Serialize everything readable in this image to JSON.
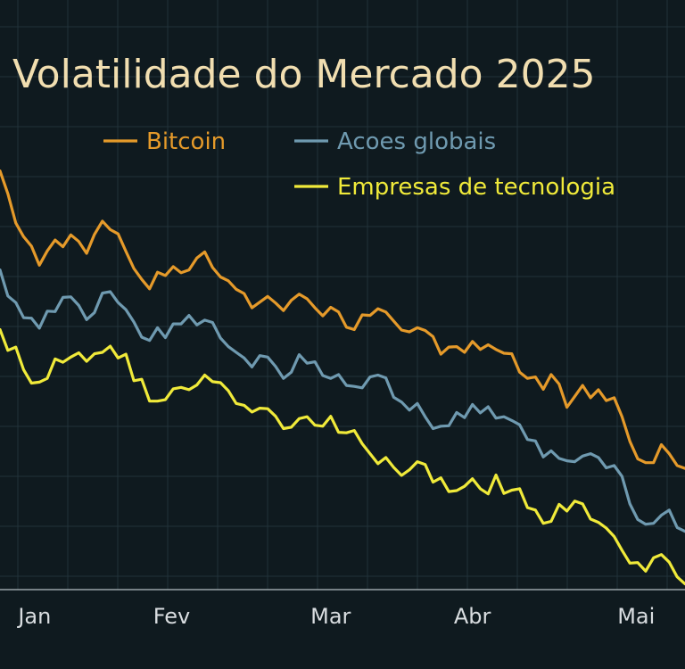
{
  "chart_data": {
    "type": "line",
    "title": "Volatilidade do Mercado 2025",
    "xlabel": "",
    "ylabel": "",
    "x_ticks": [
      "Jan",
      "Fev",
      "Mar",
      "Abr",
      "Mai"
    ],
    "x_tick_positions": [
      0.22,
      1.09,
      2.1,
      3.0,
      4.04
    ],
    "xlim": [
      0,
      4.35
    ],
    "ylim": [
      0,
      100
    ],
    "grid": true,
    "legend_position": "top",
    "colors": {
      "background": "#0f1a1f",
      "title": "#f1deb0"
    },
    "series": [
      {
        "name": "Bitcoin",
        "color": "#e59a2a",
        "values": [
          [
            0.0,
            88.4
          ],
          [
            0.05,
            83.6
          ],
          [
            0.1,
            77.4
          ],
          [
            0.15,
            74.5
          ],
          [
            0.2,
            72.5
          ],
          [
            0.25,
            68.5
          ],
          [
            0.3,
            71.5
          ],
          [
            0.35,
            73.8
          ],
          [
            0.4,
            72.4
          ],
          [
            0.45,
            74.9
          ],
          [
            0.5,
            73.5
          ],
          [
            0.55,
            71.0
          ],
          [
            0.6,
            75.0
          ],
          [
            0.65,
            77.8
          ],
          [
            0.7,
            76.0
          ],
          [
            0.75,
            75.1
          ],
          [
            0.8,
            71.4
          ],
          [
            0.85,
            67.8
          ],
          [
            0.9,
            65.5
          ],
          [
            0.95,
            63.5
          ],
          [
            1.0,
            67.0
          ],
          [
            1.05,
            66.3
          ],
          [
            1.1,
            68.2
          ],
          [
            1.15,
            66.9
          ],
          [
            1.2,
            67.5
          ],
          [
            1.25,
            70.0
          ],
          [
            1.3,
            71.3
          ],
          [
            1.35,
            68.0
          ],
          [
            1.4,
            66.0
          ],
          [
            1.45,
            65.2
          ],
          [
            1.5,
            63.4
          ],
          [
            1.55,
            62.5
          ],
          [
            1.6,
            59.5
          ],
          [
            1.65,
            60.7
          ],
          [
            1.7,
            61.9
          ],
          [
            1.75,
            60.5
          ],
          [
            1.8,
            58.9
          ],
          [
            1.85,
            61.1
          ],
          [
            1.9,
            62.4
          ],
          [
            1.95,
            61.4
          ],
          [
            2.0,
            59.5
          ],
          [
            2.05,
            57.8
          ],
          [
            2.1,
            59.6
          ],
          [
            2.15,
            58.6
          ],
          [
            2.2,
            55.4
          ],
          [
            2.25,
            54.9
          ],
          [
            2.3,
            58.0
          ],
          [
            2.35,
            57.9
          ],
          [
            2.4,
            59.3
          ],
          [
            2.45,
            58.6
          ],
          [
            2.5,
            56.7
          ],
          [
            2.55,
            54.8
          ],
          [
            2.6,
            54.4
          ],
          [
            2.65,
            55.3
          ],
          [
            2.7,
            54.7
          ],
          [
            2.75,
            53.4
          ],
          [
            2.8,
            49.7
          ],
          [
            2.85,
            51.2
          ],
          [
            2.9,
            51.3
          ],
          [
            2.95,
            50.1
          ],
          [
            3.0,
            52.4
          ],
          [
            3.05,
            50.7
          ],
          [
            3.1,
            51.7
          ],
          [
            3.15,
            50.7
          ],
          [
            3.2,
            49.9
          ],
          [
            3.25,
            49.8
          ],
          [
            3.3,
            45.9
          ],
          [
            3.35,
            44.6
          ],
          [
            3.4,
            44.9
          ],
          [
            3.45,
            42.3
          ],
          [
            3.5,
            45.4
          ],
          [
            3.55,
            43.4
          ],
          [
            3.6,
            38.5
          ],
          [
            3.65,
            40.8
          ],
          [
            3.7,
            43.1
          ],
          [
            3.75,
            40.5
          ],
          [
            3.8,
            42.2
          ],
          [
            3.85,
            39.9
          ],
          [
            3.9,
            40.5
          ],
          [
            3.95,
            36.5
          ],
          [
            4.0,
            31.3
          ],
          [
            4.05,
            27.6
          ],
          [
            4.1,
            26.8
          ],
          [
            4.15,
            26.8
          ],
          [
            4.2,
            30.6
          ],
          [
            4.25,
            28.7
          ],
          [
            4.3,
            26.2
          ],
          [
            4.35,
            25.6
          ]
        ]
      },
      {
        "name": "Acoes globais",
        "color": "#6f9ab0",
        "values": [
          [
            0.0,
            67.5
          ],
          [
            0.05,
            62.0
          ],
          [
            0.1,
            60.6
          ],
          [
            0.15,
            57.4
          ],
          [
            0.2,
            57.3
          ],
          [
            0.25,
            55.2
          ],
          [
            0.3,
            58.8
          ],
          [
            0.35,
            58.7
          ],
          [
            0.4,
            61.7
          ],
          [
            0.45,
            61.8
          ],
          [
            0.5,
            60.0
          ],
          [
            0.55,
            57.0
          ],
          [
            0.6,
            58.5
          ],
          [
            0.65,
            62.6
          ],
          [
            0.7,
            62.9
          ],
          [
            0.75,
            60.6
          ],
          [
            0.8,
            59.1
          ],
          [
            0.85,
            56.5
          ],
          [
            0.9,
            53.3
          ],
          [
            0.95,
            52.6
          ],
          [
            1.0,
            55.3
          ],
          [
            1.05,
            53.2
          ],
          [
            1.1,
            56.1
          ],
          [
            1.15,
            56.1
          ],
          [
            1.2,
            57.9
          ],
          [
            1.25,
            55.9
          ],
          [
            1.3,
            56.9
          ],
          [
            1.35,
            56.4
          ],
          [
            1.4,
            53.1
          ],
          [
            1.45,
            51.3
          ],
          [
            1.5,
            50.1
          ],
          [
            1.55,
            48.9
          ],
          [
            1.6,
            47.0
          ],
          [
            1.65,
            49.4
          ],
          [
            1.7,
            49.1
          ],
          [
            1.75,
            47.1
          ],
          [
            1.8,
            44.6
          ],
          [
            1.85,
            45.9
          ],
          [
            1.9,
            49.6
          ],
          [
            1.95,
            47.8
          ],
          [
            2.0,
            48.1
          ],
          [
            2.05,
            45.2
          ],
          [
            2.1,
            44.6
          ],
          [
            2.15,
            45.4
          ],
          [
            2.2,
            43.1
          ],
          [
            2.25,
            42.9
          ],
          [
            2.3,
            42.6
          ],
          [
            2.35,
            44.9
          ],
          [
            2.4,
            45.3
          ],
          [
            2.45,
            44.7
          ],
          [
            2.5,
            40.6
          ],
          [
            2.55,
            39.6
          ],
          [
            2.6,
            37.9
          ],
          [
            2.65,
            39.3
          ],
          [
            2.7,
            36.5
          ],
          [
            2.75,
            34.0
          ],
          [
            2.8,
            34.5
          ],
          [
            2.85,
            34.6
          ],
          [
            2.9,
            37.4
          ],
          [
            2.95,
            36.3
          ],
          [
            3.0,
            39.1
          ],
          [
            3.05,
            37.3
          ],
          [
            3.1,
            38.6
          ],
          [
            3.15,
            36.2
          ],
          [
            3.2,
            36.5
          ],
          [
            3.25,
            35.7
          ],
          [
            3.3,
            34.8
          ],
          [
            3.35,
            31.7
          ],
          [
            3.4,
            31.4
          ],
          [
            3.45,
            28.0
          ],
          [
            3.5,
            29.3
          ],
          [
            3.55,
            27.7
          ],
          [
            3.6,
            27.2
          ],
          [
            3.65,
            27.0
          ],
          [
            3.7,
            28.2
          ],
          [
            3.75,
            28.7
          ],
          [
            3.8,
            27.9
          ],
          [
            3.85,
            25.7
          ],
          [
            3.9,
            26.2
          ],
          [
            3.95,
            23.9
          ],
          [
            4.0,
            18.1
          ],
          [
            4.05,
            14.8
          ],
          [
            4.1,
            13.8
          ],
          [
            4.15,
            14.0
          ],
          [
            4.2,
            15.7
          ],
          [
            4.25,
            16.8
          ],
          [
            4.3,
            13.1
          ],
          [
            4.35,
            12.3
          ]
        ]
      },
      {
        "name": "Empresas de tecnologia",
        "color": "#f0ea3a",
        "values": [
          [
            0.0,
            54.9
          ],
          [
            0.05,
            50.5
          ],
          [
            0.1,
            51.2
          ],
          [
            0.15,
            46.4
          ],
          [
            0.2,
            43.6
          ],
          [
            0.25,
            43.8
          ],
          [
            0.3,
            44.6
          ],
          [
            0.35,
            48.7
          ],
          [
            0.4,
            48.0
          ],
          [
            0.45,
            49.1
          ],
          [
            0.5,
            50.0
          ],
          [
            0.55,
            48.2
          ],
          [
            0.6,
            49.8
          ],
          [
            0.65,
            50.1
          ],
          [
            0.7,
            51.4
          ],
          [
            0.75,
            48.9
          ],
          [
            0.8,
            49.7
          ],
          [
            0.85,
            44.1
          ],
          [
            0.9,
            44.4
          ],
          [
            0.95,
            39.8
          ],
          [
            1.0,
            39.8
          ],
          [
            1.05,
            40.1
          ],
          [
            1.1,
            42.4
          ],
          [
            1.15,
            42.7
          ],
          [
            1.2,
            42.2
          ],
          [
            1.25,
            43.2
          ],
          [
            1.3,
            45.3
          ],
          [
            1.35,
            43.9
          ],
          [
            1.4,
            43.7
          ],
          [
            1.45,
            42.0
          ],
          [
            1.5,
            39.3
          ],
          [
            1.55,
            38.9
          ],
          [
            1.6,
            37.5
          ],
          [
            1.65,
            38.3
          ],
          [
            1.7,
            38.2
          ],
          [
            1.75,
            36.6
          ],
          [
            1.8,
            34.0
          ],
          [
            1.85,
            34.3
          ],
          [
            1.9,
            36.1
          ],
          [
            1.95,
            36.5
          ],
          [
            2.0,
            34.7
          ],
          [
            2.05,
            34.5
          ],
          [
            2.1,
            36.6
          ],
          [
            2.15,
            33.2
          ],
          [
            2.2,
            33.1
          ],
          [
            2.25,
            33.6
          ],
          [
            2.3,
            30.8
          ],
          [
            2.35,
            28.7
          ],
          [
            2.4,
            26.6
          ],
          [
            2.45,
            27.9
          ],
          [
            2.5,
            25.8
          ],
          [
            2.55,
            24.1
          ],
          [
            2.6,
            25.3
          ],
          [
            2.65,
            27.0
          ],
          [
            2.7,
            26.4
          ],
          [
            2.75,
            22.7
          ],
          [
            2.8,
            23.6
          ],
          [
            2.85,
            20.7
          ],
          [
            2.9,
            20.9
          ],
          [
            2.95,
            21.8
          ],
          [
            3.0,
            23.4
          ],
          [
            3.05,
            21.3
          ],
          [
            3.1,
            20.2
          ],
          [
            3.15,
            24.2
          ],
          [
            3.2,
            20.3
          ],
          [
            3.25,
            21.0
          ],
          [
            3.3,
            21.3
          ],
          [
            3.35,
            17.3
          ],
          [
            3.4,
            16.8
          ],
          [
            3.45,
            14.0
          ],
          [
            3.5,
            14.4
          ],
          [
            3.55,
            18.0
          ],
          [
            3.6,
            16.6
          ],
          [
            3.65,
            18.7
          ],
          [
            3.7,
            18.1
          ],
          [
            3.75,
            14.9
          ],
          [
            3.8,
            14.2
          ],
          [
            3.85,
            13.0
          ],
          [
            3.9,
            11.2
          ],
          [
            3.95,
            8.3
          ],
          [
            4.0,
            5.6
          ],
          [
            4.05,
            5.7
          ],
          [
            4.1,
            3.9
          ],
          [
            4.15,
            6.7
          ],
          [
            4.2,
            7.4
          ],
          [
            4.25,
            5.8
          ],
          [
            4.3,
            2.7
          ],
          [
            4.35,
            1.2
          ]
        ]
      }
    ]
  }
}
